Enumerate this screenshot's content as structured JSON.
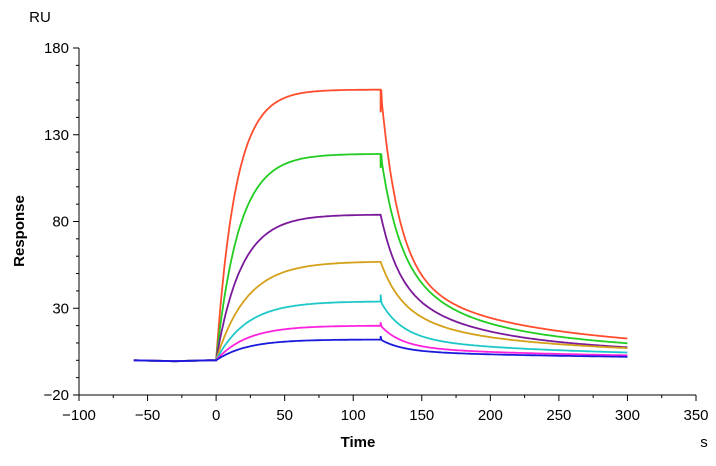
{
  "chart_data": {
    "type": "line",
    "xlabel": "Time",
    "ylabel": "Response",
    "xunit": "s",
    "yunit": "RU",
    "xlim": [
      -100,
      350
    ],
    "ylim": [
      -20,
      180
    ],
    "xticks": [
      -100,
      -50,
      0,
      50,
      100,
      150,
      200,
      250,
      300,
      350
    ],
    "yticks": [
      -20,
      30,
      80,
      130,
      180
    ],
    "grid": false,
    "series": [
      {
        "color": "#ff4d2e",
        "ka": 0.07,
        "plateau": 156,
        "spike": -13,
        "dissoc": [
          31,
          0.025,
          30,
          0.005
        ]
      },
      {
        "color": "#22cc22",
        "ka": 0.06,
        "plateau": 119,
        "spike": -8,
        "dissoc": [
          42,
          0.025,
          23,
          0.005
        ]
      },
      {
        "color": "#7a1a9a",
        "ka": 0.055,
        "plateau": 84,
        "spike": 0,
        "dissoc": [
          30,
          0.022,
          17,
          0.005
        ]
      },
      {
        "color": "#d4a017",
        "ka": 0.045,
        "plateau": 57,
        "spike": 0,
        "dissoc": [
          21,
          0.03,
          17,
          0.005
        ]
      },
      {
        "color": "#1ec8c8",
        "ka": 0.045,
        "plateau": 34,
        "spike": 4,
        "dissoc": [
          11,
          0.04,
          11,
          0.005
        ]
      },
      {
        "color": "#ff22dd",
        "ka": 0.045,
        "plateau": 20,
        "spike": 2,
        "dissoc": [
          7,
          0.05,
          7,
          0.005
        ]
      },
      {
        "color": "#1a1adc",
        "ka": 0.045,
        "plateau": 12,
        "spike": 2,
        "dissoc": [
          4,
          0.05,
          5,
          0.005
        ]
      }
    ]
  }
}
